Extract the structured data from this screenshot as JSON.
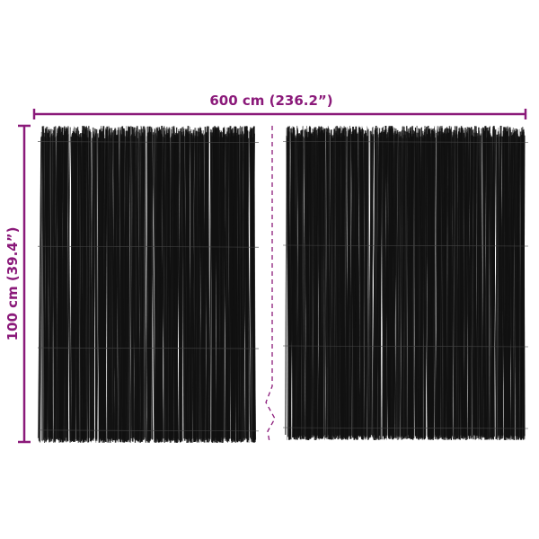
{
  "dimensions": {
    "width_label": "600 cm (236.2”)",
    "height_label": "100 cm (39.4”)"
  },
  "colors": {
    "dimension": "#8b1a7a",
    "reed": "#111111",
    "background": "#ffffff"
  },
  "panels": [
    {
      "name": "left-reed-panel"
    },
    {
      "name": "right-reed-panel"
    }
  ]
}
